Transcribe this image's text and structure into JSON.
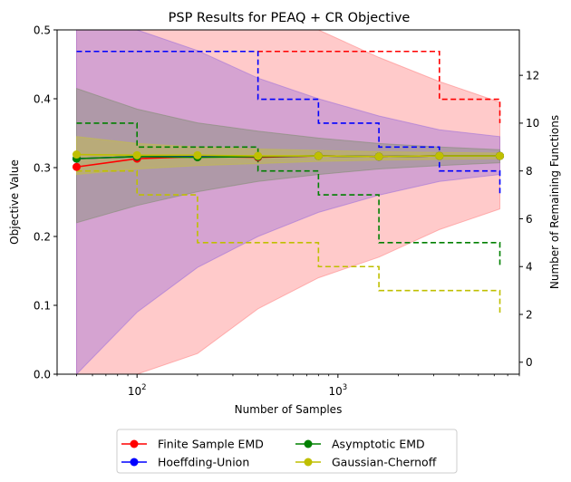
{
  "chart_data": {
    "type": "line",
    "title": "PSP Results for PEAQ + CR Objective",
    "xlabel": "Number of Samples",
    "ylabel": "Objective Value",
    "y2label": "Number of Remaining Functions",
    "xscale": "log",
    "xlim": [
      40,
      8000
    ],
    "ylim": [
      0,
      0.5
    ],
    "y2lim": [
      -0.5,
      13.9
    ],
    "x": [
      50,
      100,
      200,
      400,
      800,
      1600,
      3200,
      6400
    ],
    "x_ticks": [
      {
        "value": 100,
        "base": "10",
        "exp": "2"
      },
      {
        "value": 1000,
        "base": "10",
        "exp": "3"
      }
    ],
    "y_ticks": [
      0.0,
      0.1,
      0.2,
      0.3,
      0.4,
      0.5
    ],
    "y_tick_labels": [
      "0.0",
      "0.1",
      "0.2",
      "0.3",
      "0.4",
      "0.5"
    ],
    "y2_ticks": [
      0,
      2,
      4,
      6,
      8,
      10,
      12
    ],
    "y2_tick_labels": [
      "0",
      "2",
      "4",
      "6",
      "8",
      "10",
      "12"
    ],
    "legend_position": "below-center",
    "series": [
      {
        "name": "Finite Sample EMD",
        "color": "#ff0000",
        "band_color": "#ff8080",
        "values": [
          0.301,
          0.313,
          0.316,
          0.315,
          0.317,
          0.316,
          0.317,
          0.317
        ],
        "upper": [
          0.5,
          0.5,
          0.5,
          0.5,
          0.5,
          0.46,
          0.425,
          0.395
        ],
        "lower": [
          0.0,
          0.0,
          0.03,
          0.095,
          0.14,
          0.17,
          0.21,
          0.24
        ],
        "remaining": [
          13,
          13,
          13,
          13,
          13,
          13,
          11,
          10
        ]
      },
      {
        "name": "Hoeffding-Union",
        "color": "#0000ff",
        "band_color": "#9b6ddb",
        "values": [
          0.313,
          0.316,
          0.316,
          0.316,
          0.317,
          0.316,
          0.317,
          0.317
        ],
        "upper": [
          0.5,
          0.5,
          0.47,
          0.43,
          0.4,
          0.375,
          0.355,
          0.345
        ],
        "lower": [
          0.0,
          0.09,
          0.155,
          0.2,
          0.235,
          0.26,
          0.28,
          0.29
        ],
        "remaining": [
          13,
          13,
          13,
          11,
          10,
          9,
          8,
          7
        ]
      },
      {
        "name": "Asymptotic EMD",
        "color": "#008000",
        "band_color": "#7d8c70",
        "values": [
          0.313,
          0.316,
          0.315,
          0.316,
          0.317,
          0.316,
          0.317,
          0.317
        ],
        "upper": [
          0.415,
          0.385,
          0.365,
          0.353,
          0.343,
          0.335,
          0.33,
          0.326
        ],
        "lower": [
          0.22,
          0.245,
          0.265,
          0.28,
          0.29,
          0.298,
          0.303,
          0.307
        ],
        "remaining": [
          10,
          9,
          9,
          8,
          7,
          5,
          5,
          4
        ]
      },
      {
        "name": "Gaussian-Chernoff",
        "color": "#bfbf00",
        "band_color": "#c7c33a",
        "values": [
          0.319,
          0.318,
          0.318,
          0.317,
          0.317,
          0.316,
          0.317,
          0.317
        ],
        "upper": [
          0.345,
          0.335,
          0.33,
          0.327,
          0.325,
          0.323,
          0.322,
          0.321
        ],
        "lower": [
          0.29,
          0.298,
          0.303,
          0.306,
          0.309,
          0.311,
          0.312,
          0.313
        ],
        "remaining": [
          8,
          7,
          5,
          5,
          4,
          3,
          3,
          2
        ]
      }
    ]
  }
}
